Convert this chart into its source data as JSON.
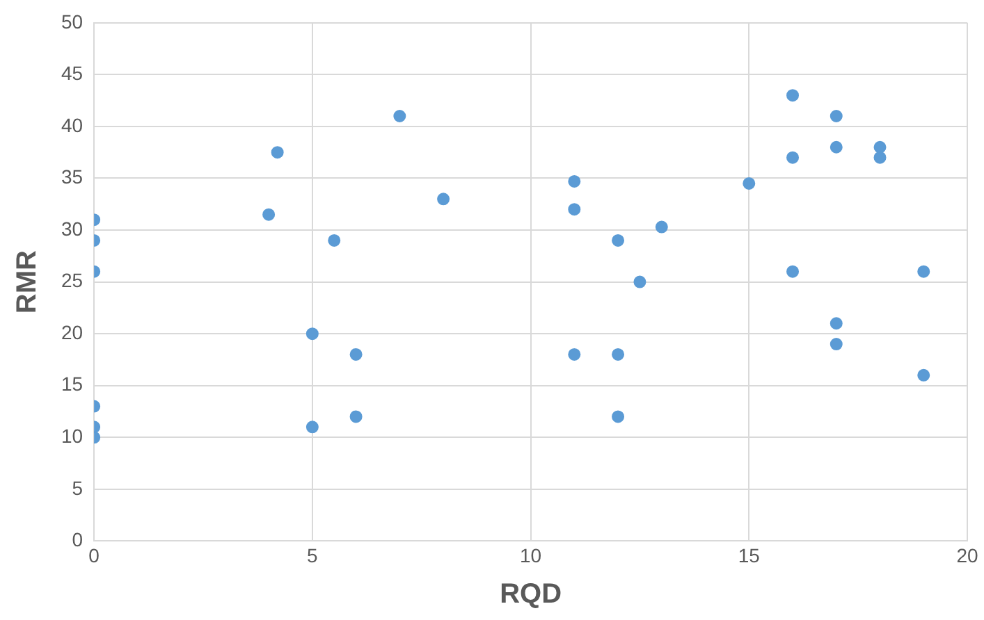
{
  "chart_data": {
    "type": "scatter",
    "xlabel": "RQD",
    "ylabel": "RMR",
    "x": [
      0,
      0,
      0,
      0,
      0,
      0,
      4,
      4.2,
      5,
      5,
      5.5,
      6,
      6,
      7,
      8,
      11,
      11,
      11,
      12,
      12,
      12,
      12.5,
      13,
      15,
      16,
      16,
      16,
      17,
      17,
      17,
      17,
      18,
      18,
      19,
      19
    ],
    "values": [
      31,
      29,
      26,
      13,
      11,
      10,
      31.5,
      37.5,
      20,
      11,
      29,
      18,
      12,
      41,
      33,
      34.7,
      32,
      18,
      29,
      18,
      12,
      25,
      30.3,
      34.5,
      43,
      37,
      26,
      41,
      38,
      21,
      19,
      38,
      37,
      26,
      16
    ],
    "color": "#5b9bd5",
    "marker": "circle",
    "xlim": [
      0,
      20
    ],
    "xticks": [
      0,
      5,
      10,
      15,
      20
    ],
    "ylim": [
      0,
      50
    ],
    "yticks": [
      0,
      5,
      10,
      15,
      20,
      25,
      30,
      35,
      40,
      45,
      50
    ],
    "grid": true,
    "legend": false
  }
}
